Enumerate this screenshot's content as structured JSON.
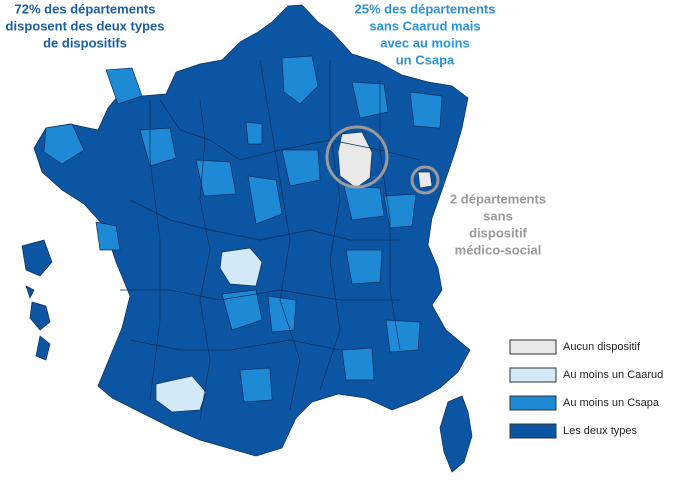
{
  "annotations": [
    {
      "lines": [
        "72% des  départements",
        "disposent des deux types",
        "de dispositifs"
      ],
      "color": "#1a5ea6"
    },
    {
      "lines": [
        "25% des  départements",
        "sans Caarud mais",
        "avec au  moins",
        "un Csapa"
      ],
      "color": "#2b93d8"
    },
    {
      "lines": [
        "2 départements",
        "sans",
        "dispositif",
        "médico-social"
      ],
      "color": "#9a9a9a"
    }
  ],
  "legend": [
    {
      "label": "Aucun dispositif",
      "color": "#e9e9ea"
    },
    {
      "label": "Au moins un Caarud",
      "color": "#d4e9f8"
    },
    {
      "label": "Au moins un Csapa",
      "color": "#1e8ad6"
    },
    {
      "label": "Les deux types",
      "color": "#0b55a2"
    }
  ]
}
